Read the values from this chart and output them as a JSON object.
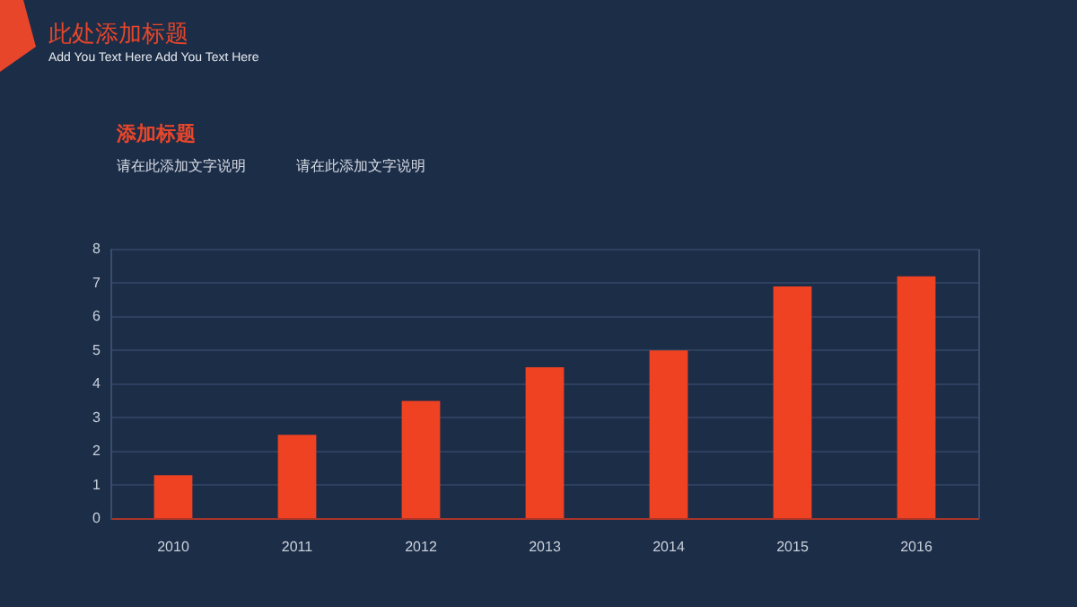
{
  "chart_data": {
    "type": "bar",
    "title": "此处添加标题",
    "subtitle": "Add You Text Here Add You Text Here",
    "annotations": [
      "添加标题",
      "请在此添加文字说明",
      "请在此添加文字说明"
    ],
    "categories": [
      "2010",
      "2011",
      "2012",
      "2013",
      "2014",
      "2015",
      "2016"
    ],
    "values": [
      1.3,
      2.5,
      3.5,
      4.5,
      5.0,
      6.9,
      7.2
    ],
    "color": "#ee4222",
    "ylim": [
      0,
      8
    ],
    "yticks": [
      0,
      1,
      2,
      3,
      4,
      5,
      6,
      7,
      8
    ],
    "grid": "y"
  }
}
